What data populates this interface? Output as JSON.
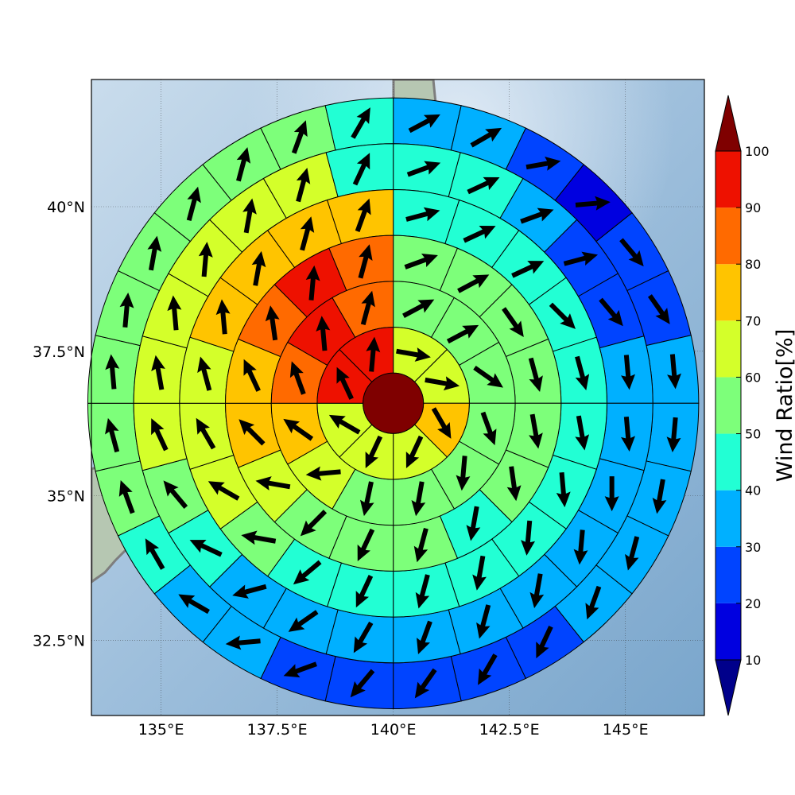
{
  "chart_data": {
    "type": "heatmap",
    "subtype": "polar sector wind map",
    "title": "",
    "colorbar": {
      "label": "Wind Ratio[%]",
      "ticks": [
        "10",
        "20",
        "30",
        "40",
        "50",
        "60",
        "70",
        "80",
        "90",
        "100"
      ],
      "bins": [
        {
          "from": 0,
          "to": 10,
          "color": "#00008b"
        },
        {
          "from": 10,
          "to": 20,
          "color": "#0000e0"
        },
        {
          "from": 20,
          "to": 30,
          "color": "#0044ff"
        },
        {
          "from": 30,
          "to": 40,
          "color": "#00b0ff"
        },
        {
          "from": 40,
          "to": 50,
          "color": "#22ffd4"
        },
        {
          "from": 50,
          "to": 60,
          "color": "#7dff7a"
        },
        {
          "from": 60,
          "to": 70,
          "color": "#d4ff2a"
        },
        {
          "from": 70,
          "to": 80,
          "color": "#ffc400"
        },
        {
          "from": 80,
          "to": 90,
          "color": "#ff6a00"
        },
        {
          "from": 90,
          "to": 100,
          "color": "#ee1100"
        },
        {
          "from": 100,
          "to": 110,
          "color": "#7f0000"
        }
      ],
      "extend": "both"
    },
    "axes": {
      "x_ticks": [
        "135°E",
        "137.5°E",
        "140°E",
        "142.5°E",
        "145°E"
      ],
      "x_values": [
        135,
        137.5,
        140,
        142.5,
        145
      ],
      "y_ticks": [
        "32.5°N",
        "35°N",
        "37.5°N",
        "40°N"
      ],
      "y_values": [
        32.5,
        35,
        37.5,
        40
      ],
      "xlim": [
        133.5,
        146.7
      ],
      "ylim": [
        31.2,
        42.2
      ],
      "grid": true
    },
    "center": {
      "lon": 140.0,
      "lat": 36.6,
      "value": 100
    },
    "rings": [
      {
        "ring": 1,
        "values": [
          {
            "deg": 22.5,
            "v": 60,
            "dir": 100
          },
          {
            "deg": 67.5,
            "v": 60,
            "dir": 100
          },
          {
            "deg": 112.5,
            "v": 70,
            "dir": 150
          },
          {
            "deg": 157.5,
            "v": 60,
            "dir": 205
          },
          {
            "deg": 202.5,
            "v": 60,
            "dir": 205
          },
          {
            "deg": 247.5,
            "v": 60,
            "dir": 300
          },
          {
            "deg": 292.5,
            "v": 90,
            "dir": 335
          },
          {
            "deg": 337.5,
            "v": 90,
            "dir": 5
          }
        ]
      },
      {
        "ring": 2,
        "values": [
          {
            "deg": 15,
            "v": 50,
            "dir": 62
          },
          {
            "deg": 45,
            "v": 50,
            "dir": 62
          },
          {
            "deg": 75,
            "v": 50,
            "dir": 125
          },
          {
            "deg": 105,
            "v": 50,
            "dir": 160
          },
          {
            "deg": 135,
            "v": 50,
            "dir": 185
          },
          {
            "deg": 165,
            "v": 50,
            "dir": 190
          },
          {
            "deg": 195,
            "v": 50,
            "dir": 192
          },
          {
            "deg": 225,
            "v": 60,
            "dir": 265
          },
          {
            "deg": 255,
            "v": 70,
            "dir": 305
          },
          {
            "deg": 285,
            "v": 80,
            "dir": 340
          },
          {
            "deg": 315,
            "v": 90,
            "dir": 355
          },
          {
            "deg": 345,
            "v": 80,
            "dir": 15
          }
        ]
      },
      {
        "ring": 3,
        "values": [
          {
            "deg": 11.25,
            "v": 50,
            "dir": 70
          },
          {
            "deg": 33.75,
            "v": 50,
            "dir": 62
          },
          {
            "deg": 56.25,
            "v": 50,
            "dir": 145
          },
          {
            "deg": 78.75,
            "v": 50,
            "dir": 165
          },
          {
            "deg": 101.25,
            "v": 50,
            "dir": 170
          },
          {
            "deg": 123.75,
            "v": 50,
            "dir": 172
          },
          {
            "deg": 146.25,
            "v": 40,
            "dir": 190
          },
          {
            "deg": 168.75,
            "v": 50,
            "dir": 195
          },
          {
            "deg": 191.25,
            "v": 50,
            "dir": 205
          },
          {
            "deg": 213.75,
            "v": 50,
            "dir": 225
          },
          {
            "deg": 236.25,
            "v": 60,
            "dir": 280
          },
          {
            "deg": 258.75,
            "v": 70,
            "dir": 315
          },
          {
            "deg": 281.25,
            "v": 70,
            "dir": 335
          },
          {
            "deg": 303.75,
            "v": 80,
            "dir": 352
          },
          {
            "deg": 326.25,
            "v": 90,
            "dir": 5
          },
          {
            "deg": 348.75,
            "v": 80,
            "dir": 15
          }
        ]
      },
      {
        "ring": 4,
        "values": [
          {
            "deg": 9,
            "v": 40,
            "dir": 75
          },
          {
            "deg": 27,
            "v": 40,
            "dir": 65
          },
          {
            "deg": 45,
            "v": 40,
            "dir": 65
          },
          {
            "deg": 63,
            "v": 40,
            "dir": 135
          },
          {
            "deg": 81,
            "v": 40,
            "dir": 165
          },
          {
            "deg": 99,
            "v": 40,
            "dir": 170
          },
          {
            "deg": 117,
            "v": 40,
            "dir": 175
          },
          {
            "deg": 135,
            "v": 40,
            "dir": 185
          },
          {
            "deg": 153,
            "v": 40,
            "dir": 190
          },
          {
            "deg": 171,
            "v": 40,
            "dir": 195
          },
          {
            "deg": 189,
            "v": 40,
            "dir": 205
          },
          {
            "deg": 207,
            "v": 40,
            "dir": 230
          },
          {
            "deg": 225,
            "v": 50,
            "dir": 280
          },
          {
            "deg": 243,
            "v": 60,
            "dir": 300
          },
          {
            "deg": 261,
            "v": 60,
            "dir": 330
          },
          {
            "deg": 279,
            "v": 60,
            "dir": 345
          },
          {
            "deg": 297,
            "v": 70,
            "dir": 355
          },
          {
            "deg": 315,
            "v": 70,
            "dir": 10
          },
          {
            "deg": 333,
            "v": 70,
            "dir": 15
          },
          {
            "deg": 351,
            "v": 70,
            "dir": 20
          }
        ]
      },
      {
        "ring": 5,
        "values": [
          {
            "deg": 7.5,
            "v": 40,
            "dir": 70
          },
          {
            "deg": 22.5,
            "v": 40,
            "dir": 65
          },
          {
            "deg": 37.5,
            "v": 30,
            "dir": 70
          },
          {
            "deg": 52.5,
            "v": 20,
            "dir": 75
          },
          {
            "deg": 67.5,
            "v": 20,
            "dir": 140
          },
          {
            "deg": 82.5,
            "v": 30,
            "dir": 175
          },
          {
            "deg": 97.5,
            "v": 30,
            "dir": 175
          },
          {
            "deg": 112.5,
            "v": 30,
            "dir": 180
          },
          {
            "deg": 127.5,
            "v": 30,
            "dir": 185
          },
          {
            "deg": 142.5,
            "v": 30,
            "dir": 190
          },
          {
            "deg": 157.5,
            "v": 30,
            "dir": 195
          },
          {
            "deg": 172.5,
            "v": 30,
            "dir": 200
          },
          {
            "deg": 187.5,
            "v": 30,
            "dir": 210
          },
          {
            "deg": 202.5,
            "v": 30,
            "dir": 235
          },
          {
            "deg": 217.5,
            "v": 30,
            "dir": 255
          },
          {
            "deg": 232.5,
            "v": 40,
            "dir": 295
          },
          {
            "deg": 247.5,
            "v": 50,
            "dir": 320
          },
          {
            "deg": 262.5,
            "v": 60,
            "dir": 335
          },
          {
            "deg": 277.5,
            "v": 60,
            "dir": 350
          },
          {
            "deg": 292.5,
            "v": 60,
            "dir": 355
          },
          {
            "deg": 307.5,
            "v": 60,
            "dir": 5
          },
          {
            "deg": 322.5,
            "v": 60,
            "dir": 10
          },
          {
            "deg": 337.5,
            "v": 60,
            "dir": 15
          },
          {
            "deg": 352.5,
            "v": 40,
            "dir": 25
          }
        ]
      },
      {
        "ring": 6,
        "values": [
          {
            "deg": 6.43,
            "v": 30,
            "dir": 62
          },
          {
            "deg": 19.29,
            "v": 30,
            "dir": 60
          },
          {
            "deg": 32.14,
            "v": 20,
            "dir": 80
          },
          {
            "deg": 45,
            "v": 10,
            "dir": 85
          },
          {
            "deg": 57.86,
            "v": 20,
            "dir": 140
          },
          {
            "deg": 70.71,
            "v": 20,
            "dir": 145
          },
          {
            "deg": 83.57,
            "v": 30,
            "dir": 175
          },
          {
            "deg": 96.43,
            "v": 30,
            "dir": 185
          },
          {
            "deg": 109.29,
            "v": 30,
            "dir": 190
          },
          {
            "deg": 122.14,
            "v": 30,
            "dir": 195
          },
          {
            "deg": 135,
            "v": 30,
            "dir": 200
          },
          {
            "deg": 147.86,
            "v": 20,
            "dir": 205
          },
          {
            "deg": 160.71,
            "v": 20,
            "dir": 210
          },
          {
            "deg": 173.57,
            "v": 20,
            "dir": 215
          },
          {
            "deg": 186.43,
            "v": 20,
            "dir": 220
          },
          {
            "deg": 199.29,
            "v": 20,
            "dir": 250
          },
          {
            "deg": 212.14,
            "v": 30,
            "dir": 265
          },
          {
            "deg": 225,
            "v": 30,
            "dir": 300
          },
          {
            "deg": 237.86,
            "v": 40,
            "dir": 330
          },
          {
            "deg": 250.71,
            "v": 50,
            "dir": 340
          },
          {
            "deg": 263.57,
            "v": 50,
            "dir": 345
          },
          {
            "deg": 276.43,
            "v": 50,
            "dir": 355
          },
          {
            "deg": 289.29,
            "v": 50,
            "dir": 5
          },
          {
            "deg": 302.14,
            "v": 50,
            "dir": 10
          },
          {
            "deg": 315,
            "v": 50,
            "dir": 15
          },
          {
            "deg": 327.86,
            "v": 50,
            "dir": 15
          },
          {
            "deg": 340.71,
            "v": 50,
            "dir": 20
          },
          {
            "deg": 353.57,
            "v": 40,
            "dir": 30
          }
        ]
      }
    ]
  }
}
